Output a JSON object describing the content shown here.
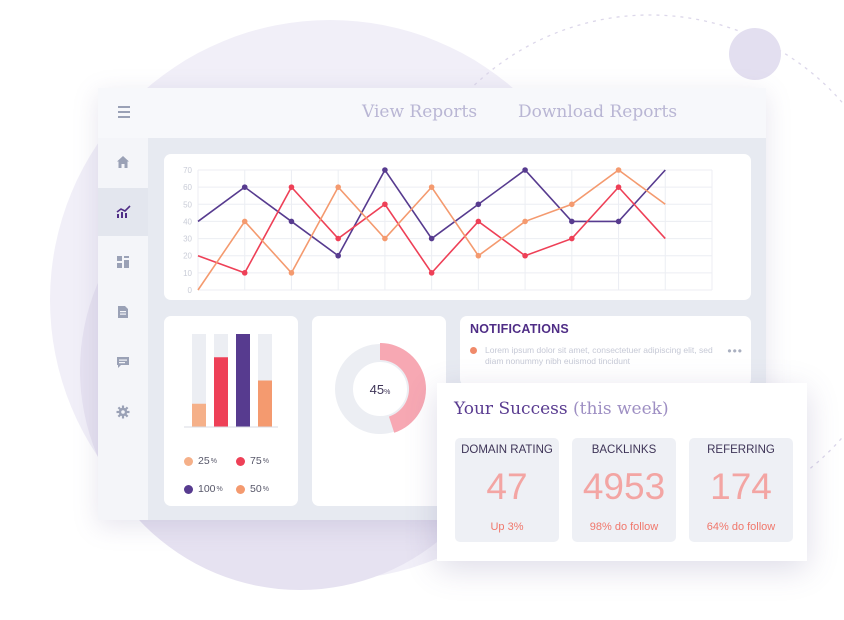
{
  "colors": {
    "purple": "#573b8f",
    "red": "#ee4057",
    "orange": "#f49a6f",
    "pink": "#f7a8b3",
    "peach": "#f5b089",
    "gray_track": "#eceef3",
    "accent_text": "#f3a5a3"
  },
  "header": {
    "menu_icon": "hamburger-icon",
    "links": [
      "View Reports",
      "Download Reports"
    ]
  },
  "sidebar": {
    "items": [
      {
        "icon": "home-icon",
        "active": false
      },
      {
        "icon": "analytics-icon",
        "active": true
      },
      {
        "icon": "dashboard-grid-icon",
        "active": false
      },
      {
        "icon": "document-icon",
        "active": false
      },
      {
        "icon": "message-icon",
        "active": false
      },
      {
        "icon": "gear-icon",
        "active": false
      }
    ]
  },
  "chart_data": [
    {
      "type": "line",
      "x": [
        1,
        2,
        3,
        4,
        5,
        6,
        7,
        8,
        9,
        10,
        11,
        12
      ],
      "ylim": [
        0,
        70
      ],
      "yticks": [
        0,
        10,
        20,
        30,
        40,
        50,
        60,
        70
      ],
      "grid": true,
      "series": [
        {
          "color": "#573b8f",
          "values": [
            40,
            60,
            40,
            20,
            70,
            30,
            50,
            70,
            40,
            40,
            70,
            null
          ]
        },
        {
          "color": "#ee4057",
          "values": [
            20,
            10,
            60,
            30,
            50,
            10,
            40,
            20,
            30,
            60,
            30,
            null
          ]
        },
        {
          "color": "#f49a6f",
          "values": [
            0,
            40,
            10,
            60,
            30,
            60,
            20,
            40,
            50,
            70,
            50,
            null
          ]
        }
      ]
    },
    {
      "type": "bar",
      "values": [
        25,
        75,
        100,
        50
      ],
      "colors": [
        "#f5b089",
        "#ee4057",
        "#573b8f",
        "#f49a6f"
      ],
      "ylim": [
        0,
        100
      ],
      "legend": [
        {
          "value": "25",
          "unit": "%",
          "color": "#f5b089"
        },
        {
          "value": "75",
          "unit": "%",
          "color": "#ee4057"
        },
        {
          "value": "100",
          "unit": "%",
          "color": "#573b8f"
        },
        {
          "value": "50",
          "unit": "%",
          "color": "#f49a6f"
        }
      ]
    },
    {
      "type": "pie",
      "label": "45",
      "unit": "%",
      "values": [
        45,
        55
      ],
      "colors": [
        "#f7a8b3",
        "#eceef3"
      ]
    }
  ],
  "notifications": {
    "title": "NOTIFICATIONS",
    "item_text": "Lorem ipsum dolor sit amet, consectetuer adipiscing elit, sed diam nonummy nibh euismod tincidunt",
    "more": "•••"
  },
  "success": {
    "title": "Your Success",
    "subtitle": "(this week)",
    "stats": [
      {
        "label": "DOMAIN RATING",
        "value": "47",
        "note": "Up 3%"
      },
      {
        "label": "BACKLINKS",
        "value": "4953",
        "note": "98% do follow"
      },
      {
        "label": "REFERRING",
        "value": "174",
        "note": "64% do follow"
      }
    ]
  }
}
